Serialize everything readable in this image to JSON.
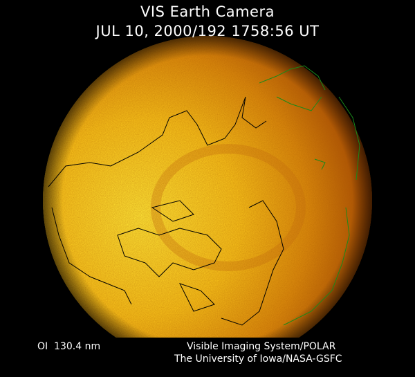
{
  "header": {
    "title": "VIS Earth Camera",
    "timestamp": "JUL 10, 2000/192 1758:56 UT"
  },
  "footer": {
    "filter": "OI  130.4 nm",
    "instrument": "Visible Imaging System/POLAR",
    "institution": "The University of Iowa/NASA-GSFC"
  },
  "colors": {
    "background": "#000000",
    "disc_bright": "#ffe020",
    "disc_dark": "#8a2a00",
    "coastline_day": "#000000",
    "coastline_night": "#1a8a1a"
  }
}
